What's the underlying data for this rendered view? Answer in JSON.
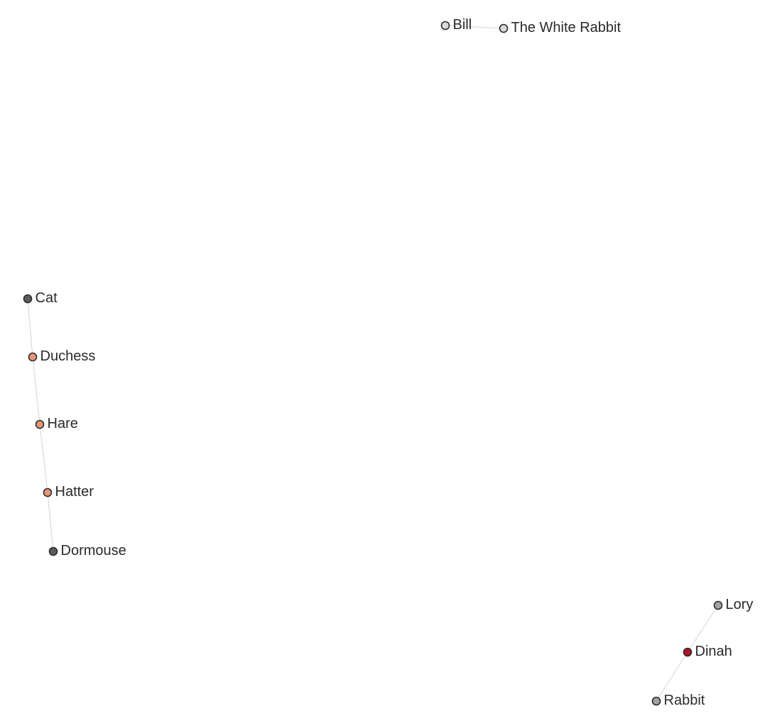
{
  "graph": {
    "node_colors": {
      "dark": "#5c5c5c",
      "orange": "#e8967a",
      "light": "#d9d9d9",
      "gray": "#a3a3a3",
      "red": "#b01324"
    },
    "nodes": [
      {
        "id": "bill",
        "label": "Bill",
        "color": "light"
      },
      {
        "id": "white-rabbit",
        "label": "The White Rabbit",
        "color": "light"
      },
      {
        "id": "cat",
        "label": "Cat",
        "color": "dark"
      },
      {
        "id": "duchess",
        "label": "Duchess",
        "color": "orange"
      },
      {
        "id": "hare",
        "label": "Hare",
        "color": "orange"
      },
      {
        "id": "hatter",
        "label": "Hatter",
        "color": "orange"
      },
      {
        "id": "dormouse",
        "label": "Dormouse",
        "color": "dark"
      },
      {
        "id": "lory",
        "label": "Lory",
        "color": "gray"
      },
      {
        "id": "dinah",
        "label": "Dinah",
        "color": "red"
      },
      {
        "id": "rabbit",
        "label": "Rabbit",
        "color": "gray"
      }
    ],
    "edges": [
      [
        "bill",
        "white-rabbit"
      ],
      [
        "cat",
        "duchess"
      ],
      [
        "duchess",
        "hare"
      ],
      [
        "hare",
        "hatter"
      ],
      [
        "hatter",
        "dormouse"
      ],
      [
        "lory",
        "dinah"
      ],
      [
        "dinah",
        "rabbit"
      ]
    ]
  }
}
